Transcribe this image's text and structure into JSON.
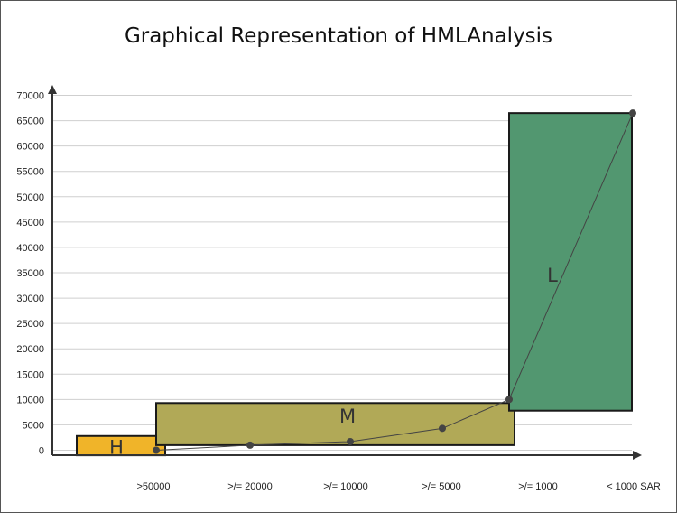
{
  "chart_data": {
    "type": "line",
    "title": "Graphical Representation of HMLAnalysis",
    "categories": [
      ">50000",
      ">/= 20000",
      ">/= 10000",
      ">/= 5000",
      ">/= 1000",
      "< 1000 SAR"
    ],
    "values": [
      0,
      1000,
      1700,
      4300,
      10000,
      66500
    ],
    "ylim": [
      0,
      70000
    ],
    "yticks": [
      0,
      5000,
      10000,
      15000,
      20000,
      25000,
      30000,
      35000,
      40000,
      45000,
      50000,
      55000,
      60000,
      65000,
      70000
    ],
    "grid": true,
    "regions": [
      {
        "label": "H",
        "color": "#f0b429",
        "y_range": [
          -1000,
          2800
        ]
      },
      {
        "label": "M",
        "color": "#b1a957",
        "y_range": [
          1000,
          9300
        ]
      },
      {
        "label": "L",
        "color": "#529770",
        "y_range": [
          7800,
          66500
        ]
      }
    ]
  }
}
